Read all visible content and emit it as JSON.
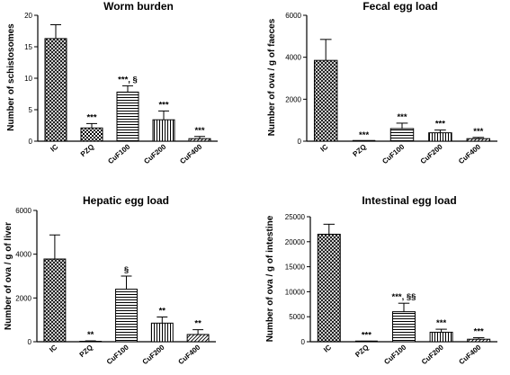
{
  "chart_data": [
    {
      "type": "bar",
      "title": "Worm burden",
      "xlabel": "",
      "ylabel": "Number of schistosomes",
      "ylim": [
        0,
        20
      ],
      "yticks": [
        0,
        5,
        10,
        15,
        20
      ],
      "categories": [
        "IC",
        "PZQ",
        "CuF100",
        "CuF200",
        "CuF400"
      ],
      "values": [
        16.3,
        2.1,
        7.8,
        3.4,
        0.4
      ],
      "errors": [
        2.2,
        0.7,
        1.0,
        1.4,
        0.35
      ],
      "annotations": [
        "",
        "***",
        "***, §",
        "***",
        "***"
      ],
      "patterns": [
        "crosshatch",
        "checker",
        "horizontal",
        "vertical",
        "diagonal"
      ]
    },
    {
      "type": "bar",
      "title": "Fecal egg load",
      "xlabel": "",
      "ylabel": "Number of ova / g of faeces",
      "ylim": [
        0,
        6000
      ],
      "yticks": [
        0,
        2000,
        4000,
        6000
      ],
      "categories": [
        "IC",
        "PZQ",
        "CuF100",
        "CuF200",
        "CuF400"
      ],
      "values": [
        3850,
        0,
        600,
        400,
        120
      ],
      "errors": [
        1000,
        0,
        260,
        130,
        60
      ],
      "annotations": [
        "",
        "***",
        "***",
        "***",
        "***"
      ],
      "patterns": [
        "crosshatch",
        "checker",
        "horizontal",
        "vertical",
        "diagonal"
      ]
    },
    {
      "type": "bar",
      "title": "Hepatic egg load",
      "xlabel": "",
      "ylabel": "Number of ova / g of liver",
      "ylim": [
        0,
        6000
      ],
      "yticks": [
        0,
        2000,
        4000,
        6000
      ],
      "categories": [
        "IC",
        "PZQ",
        "CuF100",
        "CuF200",
        "CuF400"
      ],
      "values": [
        3780,
        20,
        2400,
        850,
        330
      ],
      "errors": [
        1100,
        20,
        600,
        280,
        220
      ],
      "annotations": [
        "",
        "**",
        "§",
        "**",
        "**"
      ],
      "patterns": [
        "crosshatch",
        "checker",
        "horizontal",
        "vertical",
        "diagonal"
      ]
    },
    {
      "type": "bar",
      "title": "Intestinal egg load",
      "xlabel": "",
      "ylabel": "Number of ova / g of intestine",
      "ylim": [
        0,
        25000
      ],
      "yticks": [
        0,
        5000,
        10000,
        15000,
        20000,
        25000
      ],
      "categories": [
        "IC",
        "PZQ",
        "CuF100",
        "CuF200",
        "CuF400"
      ],
      "values": [
        21500,
        50,
        6000,
        1900,
        500
      ],
      "errors": [
        2000,
        50,
        1700,
        600,
        300
      ],
      "annotations": [
        "",
        "***",
        "***, §§",
        "***",
        "***"
      ],
      "patterns": [
        "crosshatch",
        "checker",
        "horizontal",
        "vertical",
        "diagonal"
      ]
    }
  ]
}
